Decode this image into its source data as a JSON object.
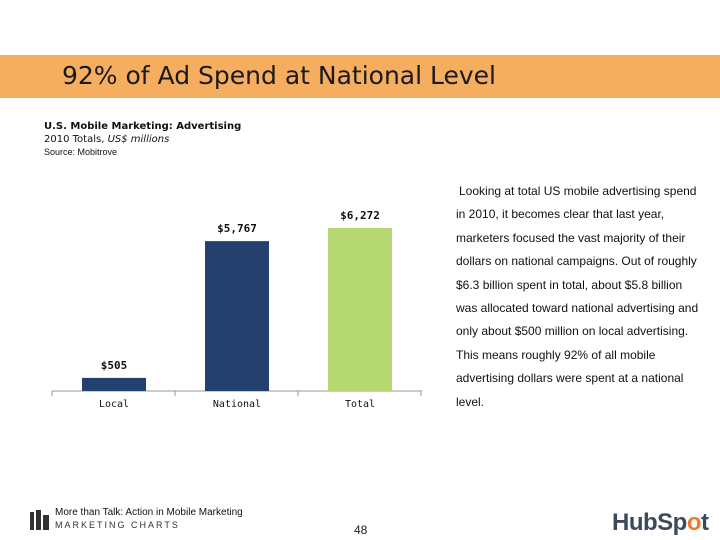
{
  "slide": {
    "title": "92% of Ad Spend at National Level",
    "source_title": "U.S. Mobile Marketing: Advertising",
    "source_subtitle_prefix": "2010 Totals, ",
    "source_subtitle_units": "US$ millions",
    "source_line": "Source: Mobitrove",
    "commentary": "Looking at total US mobile advertising spend in 2010, it becomes clear that last year, marketers focused the vast majority of their dollars on national campaigns. Out of roughly $6.3 billion spent in total, about $5.8 billion was allocated toward national advertising and only about $500 million on local advertising. This means roughly 92% of all mobile advertising dollars were spent at a national level.",
    "footer_tagline": "More than Talk: Action in Mobile Marketing",
    "footer_brand": "MARKETING CHARTS",
    "page_number": "48",
    "hubspot_pre": "HubSp",
    "hubspot_o": "o",
    "hubspot_post": "t"
  },
  "chart_data": {
    "type": "bar",
    "categories": [
      "Local",
      "National",
      "Total"
    ],
    "values": [
      505,
      5767,
      6272
    ],
    "data_labels": [
      "$505",
      "$5,767",
      "$6,272"
    ],
    "colors": [
      "#24406e",
      "#24406e",
      "#b5d872"
    ],
    "ylim": [
      0,
      6272
    ],
    "title": "",
    "xlabel": "",
    "ylabel": "",
    "grid": false,
    "legend": "none"
  }
}
